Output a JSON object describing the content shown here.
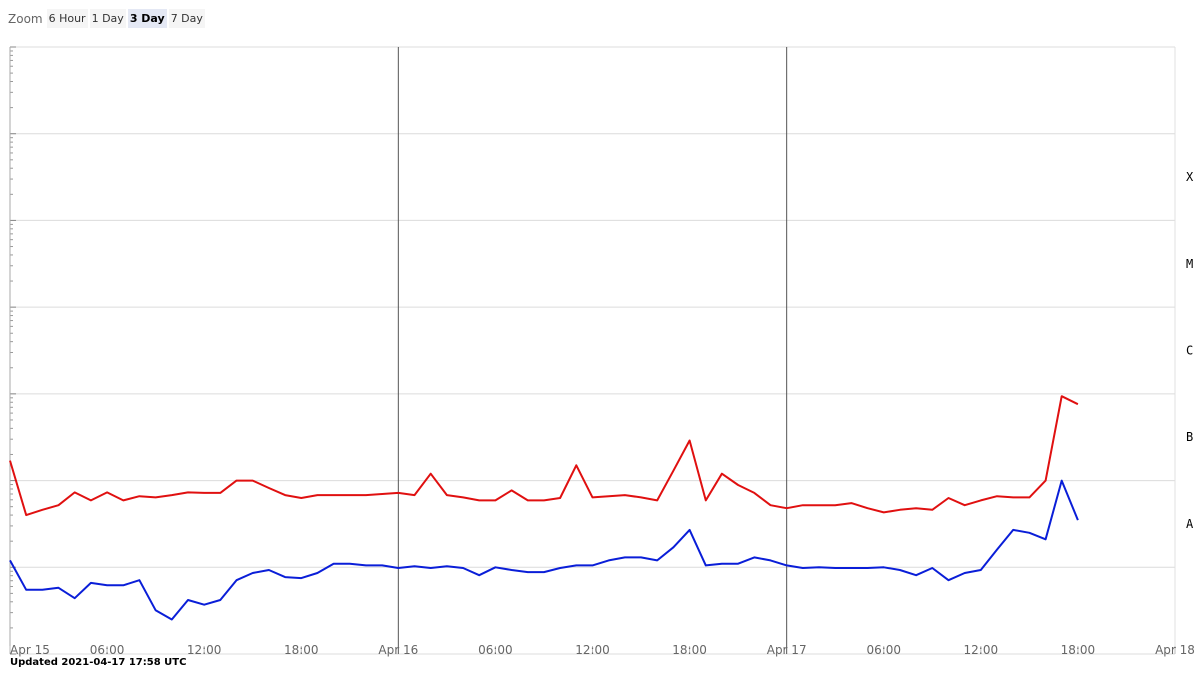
{
  "zoom": {
    "label": "Zoom",
    "options": [
      "6 Hour",
      "1 Day",
      "3 Day",
      "7 Day"
    ],
    "selected": 2
  },
  "updated": "Updated 2021-04-17 17:58 UTC",
  "chart_data": {
    "type": "line",
    "log_scale": true,
    "grid": true,
    "x": [
      "Apr 15 00:00",
      "Apr 15 01:00",
      "Apr 15 02:00",
      "Apr 15 03:00",
      "Apr 15 04:00",
      "Apr 15 05:00",
      "Apr 15 06:00",
      "Apr 15 07:00",
      "Apr 15 08:00",
      "Apr 15 09:00",
      "Apr 15 10:00",
      "Apr 15 11:00",
      "Apr 15 12:00",
      "Apr 15 13:00",
      "Apr 15 14:00",
      "Apr 15 15:00",
      "Apr 15 16:00",
      "Apr 15 17:00",
      "Apr 15 18:00",
      "Apr 15 19:00",
      "Apr 15 20:00",
      "Apr 15 21:00",
      "Apr 15 22:00",
      "Apr 15 23:00",
      "Apr 16 00:00",
      "Apr 16 01:00",
      "Apr 16 02:00",
      "Apr 16 03:00",
      "Apr 16 04:00",
      "Apr 16 05:00",
      "Apr 16 06:00",
      "Apr 16 07:00",
      "Apr 16 08:00",
      "Apr 16 09:00",
      "Apr 16 10:00",
      "Apr 16 11:00",
      "Apr 16 12:00",
      "Apr 16 13:00",
      "Apr 16 14:00",
      "Apr 16 15:00",
      "Apr 16 16:00",
      "Apr 16 17:00",
      "Apr 16 18:00",
      "Apr 16 19:00",
      "Apr 16 20:00",
      "Apr 16 21:00",
      "Apr 16 22:00",
      "Apr 16 23:00",
      "Apr 17 00:00",
      "Apr 17 01:00",
      "Apr 17 02:00",
      "Apr 17 03:00",
      "Apr 17 04:00",
      "Apr 17 05:00",
      "Apr 17 06:00",
      "Apr 17 07:00",
      "Apr 17 08:00",
      "Apr 17 09:00",
      "Apr 17 10:00",
      "Apr 17 11:00",
      "Apr 17 12:00",
      "Apr 17 13:00",
      "Apr 17 14:00",
      "Apr 17 15:00",
      "Apr 17 16:00",
      "Apr 17 17:00",
      "Apr 17 18:00"
    ],
    "series": [
      {
        "color": "#e01010",
        "values": [
          1.7e-07,
          4e-08,
          4.6e-08,
          5.2e-08,
          7.3e-08,
          5.9e-08,
          7.3e-08,
          5.9e-08,
          6.6e-08,
          6.4e-08,
          6.8e-08,
          7.3e-08,
          7.2e-08,
          7.2e-08,
          1e-07,
          1e-07,
          8.2e-08,
          6.8e-08,
          6.3e-08,
          6.8e-08,
          6.8e-08,
          6.8e-08,
          6.8e-08,
          7e-08,
          7.2e-08,
          6.8e-08,
          1.2e-07,
          6.8e-08,
          6.4e-08,
          5.9e-08,
          5.9e-08,
          7.7e-08,
          5.9e-08,
          5.9e-08,
          6.3e-08,
          1.5e-07,
          6.4e-08,
          6.6e-08,
          6.8e-08,
          6.4e-08,
          5.9e-08,
          1.3e-07,
          2.9e-07,
          5.9e-08,
          1.2e-07,
          8.9e-08,
          7.2e-08,
          5.2e-08,
          4.8e-08,
          5.2e-08,
          5.2e-08,
          5.2e-08,
          5.5e-08,
          4.8e-08,
          4.3e-08,
          4.6e-08,
          4.8e-08,
          4.6e-08,
          6.3e-08,
          5.2e-08,
          5.9e-08,
          6.6e-08,
          6.4e-08,
          6.4e-08,
          1e-07,
          9.4e-07,
          7.6e-07
        ]
      },
      {
        "color": "#0a1ed8",
        "values": [
          1.2e-08,
          5.5e-09,
          5.5e-09,
          5.8e-09,
          4.4e-09,
          6.6e-09,
          6.2e-09,
          6.2e-09,
          7.1e-09,
          3.2e-09,
          2.5e-09,
          4.2e-09,
          3.7e-09,
          4.2e-09,
          7.1e-09,
          8.6e-09,
          9.3e-09,
          7.7e-09,
          7.5e-09,
          8.6e-09,
          1.1e-08,
          1.1e-08,
          1.05e-08,
          1.05e-08,
          9.8e-09,
          1.03e-08,
          9.8e-09,
          1.03e-08,
          9.8e-09,
          8.1e-09,
          1e-08,
          9.3e-09,
          8.8e-09,
          8.8e-09,
          9.8e-09,
          1.05e-08,
          1.05e-08,
          1.2e-08,
          1.3e-08,
          1.3e-08,
          1.2e-08,
          1.7e-08,
          2.7e-08,
          1.05e-08,
          1.1e-08,
          1.1e-08,
          1.3e-08,
          1.2e-08,
          1.05e-08,
          9.8e-09,
          1e-08,
          9.8e-09,
          9.8e-09,
          9.8e-09,
          1e-08,
          9.3e-09,
          8.1e-09,
          9.8e-09,
          7.1e-09,
          8.6e-09,
          9.3e-09,
          1.6e-08,
          2.7e-08,
          2.5e-08,
          2.1e-08,
          1e-07,
          3.5e-08
        ]
      }
    ],
    "xlim": [
      "Apr 15 00:00",
      "Apr 18 00:00"
    ],
    "xticks": [
      {
        "value": "Apr 15 00:00",
        "label": "Apr 15"
      },
      {
        "value": "Apr 15 06:00",
        "label": "06:00"
      },
      {
        "value": "Apr 15 12:00",
        "label": "12:00"
      },
      {
        "value": "Apr 15 18:00",
        "label": "18:00"
      },
      {
        "value": "Apr 16 00:00",
        "label": "Apr 16"
      },
      {
        "value": "Apr 16 06:00",
        "label": "06:00"
      },
      {
        "value": "Apr 16 12:00",
        "label": "12:00"
      },
      {
        "value": "Apr 16 18:00",
        "label": "18:00"
      },
      {
        "value": "Apr 17 00:00",
        "label": "Apr 17"
      },
      {
        "value": "Apr 17 06:00",
        "label": "06:00"
      },
      {
        "value": "Apr 17 12:00",
        "label": "12:00"
      },
      {
        "value": "Apr 17 18:00",
        "label": "18:00"
      },
      {
        "value": "Apr 18 00:00",
        "label": "Apr 18"
      }
    ],
    "ylim": [
      1e-09,
      0.01
    ],
    "yticks": [
      1e-09,
      1e-08,
      1e-07,
      1e-06,
      1e-05,
      0.0001,
      0.001,
      0.01
    ],
    "flare_classes": [
      {
        "value": 1e-08,
        "label": "A"
      },
      {
        "value": 1e-07,
        "label": "B"
      },
      {
        "value": 1e-06,
        "label": "C"
      },
      {
        "value": 1e-05,
        "label": "M"
      },
      {
        "value": 0.0001,
        "label": "X"
      }
    ]
  }
}
